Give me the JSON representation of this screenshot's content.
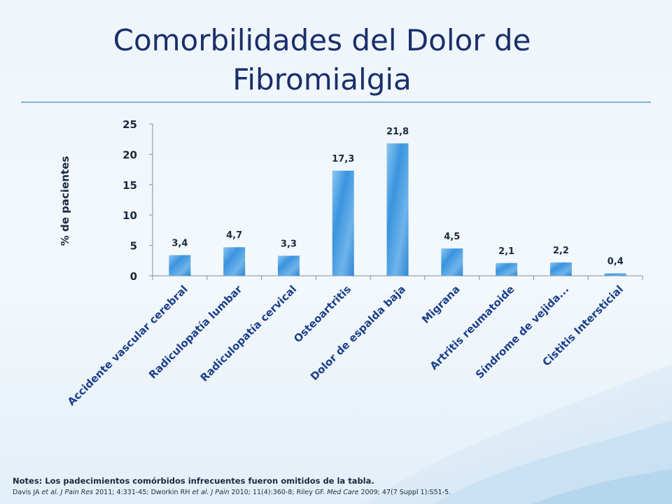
{
  "title_line1": "Comorbilidades del Dolor de",
  "title_line2": "Fibromialgia",
  "notes": "Notes: Los padecimientos comórbidos infrecuentes fueron omitidos de la tabla.",
  "references": {
    "r1": "Davis JA ",
    "r2": "et al. J Pain  Res",
    "r3": " 2011; 4:331-45; Dworkin RH ",
    "r4": "et al. J Pain",
    "r5": "  2010; 11(4):360-8; Riley GF. ",
    "r6": "Med Care",
    "r7": " 2009; 47(7 Suppl 1):S51-5."
  },
  "colors": {
    "title": "#1a2f6b",
    "bar": "#3a94de",
    "bar_light": "#8cc6f1",
    "text": "#1b2a40"
  },
  "chart_data": {
    "type": "bar",
    "title": "",
    "xlabel": "",
    "ylabel": "% de pacientes",
    "ylim": [
      0,
      25
    ],
    "yticks": [
      0,
      5,
      10,
      15,
      20,
      25
    ],
    "grid": false,
    "categories": [
      "Accidente vascular cerebral",
      "Radiculopatía lumbar",
      "Radiculopatía cervical",
      "Osteoartritis",
      "Dolor de espalda baja",
      "Migrana",
      "Artritis reumatoide",
      "Síndrome de vejida...",
      "Cistitis Intersticial"
    ],
    "values": [
      3.4,
      4.7,
      3.3,
      17.3,
      21.8,
      4.5,
      2.1,
      2.2,
      0.4
    ],
    "data_labels": [
      "3,4",
      "4,7",
      "3,3",
      "17,3",
      "21,8",
      "4,5",
      "2,1",
      "2,2",
      "0,4"
    ]
  }
}
